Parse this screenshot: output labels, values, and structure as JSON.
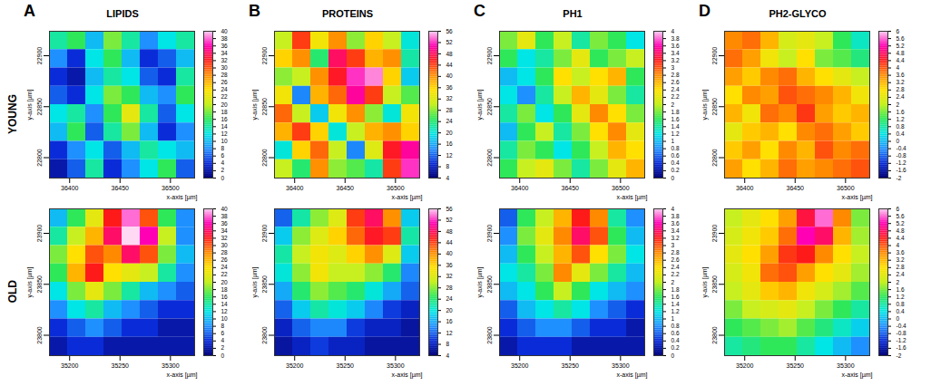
{
  "columns": [
    {
      "letter": "A",
      "title": "LIPIDS"
    },
    {
      "letter": "B",
      "title": "PROTEINS"
    },
    {
      "letter": "C",
      "title": "PH1"
    },
    {
      "letter": "D",
      "title": "PH2-GLYCO"
    }
  ],
  "rows": [
    "YOUNG",
    "OLD"
  ],
  "chart_data": [
    {
      "type": "heatmap",
      "x_label": "x-axis [µm]",
      "y_label": "y-axis [µm]",
      "xlim": [
        36380,
        36524
      ],
      "ylim": [
        22780,
        22924
      ],
      "xticks": [
        36400,
        36450,
        36500
      ],
      "yticks": [
        22800,
        22850,
        22900
      ],
      "x": [
        36389,
        36407,
        36425,
        36443,
        36461,
        36479,
        36497,
        36515
      ],
      "y": [
        22915,
        22897,
        22879,
        22861,
        22843,
        22825,
        22807,
        22789
      ],
      "cells": [
        [
          14,
          16,
          10,
          18,
          14,
          8,
          12,
          14
        ],
        [
          8,
          4,
          12,
          16,
          10,
          4,
          6,
          10
        ],
        [
          4,
          2,
          10,
          14,
          12,
          6,
          4,
          14
        ],
        [
          6,
          4,
          12,
          18,
          16,
          10,
          8,
          16
        ],
        [
          12,
          14,
          8,
          16,
          22,
          14,
          6,
          12
        ],
        [
          10,
          16,
          6,
          14,
          18,
          10,
          4,
          8
        ],
        [
          4,
          8,
          12,
          6,
          10,
          14,
          12,
          10
        ],
        [
          2,
          6,
          14,
          4,
          8,
          12,
          16,
          6
        ]
      ],
      "colorbar_range": [
        0,
        40
      ],
      "colorbar_ticks": [
        0,
        2,
        4,
        6,
        8,
        10,
        12,
        14,
        16,
        18,
        20,
        22,
        24,
        26,
        28,
        30,
        32,
        34,
        36,
        38,
        40
      ]
    },
    {
      "type": "heatmap",
      "x_label": "x-axis [µm]",
      "y_label": "y-axis [µm]",
      "xlim": [
        36380,
        36524
      ],
      "ylim": [
        22780,
        22924
      ],
      "xticks": [
        36400,
        36450,
        36500
      ],
      "yticks": [
        22800,
        22850,
        22900
      ],
      "x": [
        36389,
        36407,
        36425,
        36443,
        36461,
        36479,
        36497,
        36515
      ],
      "y": [
        22915,
        22897,
        22879,
        22861,
        22843,
        22825,
        22807,
        22789
      ],
      "cells": [
        [
          30,
          44,
          34,
          40,
          28,
          36,
          30,
          20
        ],
        [
          36,
          40,
          24,
          48,
          44,
          38,
          40,
          22
        ],
        [
          28,
          30,
          40,
          46,
          52,
          54,
          36,
          18
        ],
        [
          34,
          14,
          38,
          42,
          50,
          44,
          30,
          26
        ],
        [
          42,
          30,
          18,
          34,
          40,
          28,
          20,
          34
        ],
        [
          38,
          44,
          36,
          20,
          30,
          38,
          40,
          36
        ],
        [
          20,
          36,
          42,
          30,
          14,
          32,
          46,
          50
        ],
        [
          30,
          24,
          40,
          28,
          26,
          22,
          44,
          52
        ]
      ],
      "colorbar_range": [
        4,
        56
      ],
      "colorbar_ticks": [
        4,
        8,
        12,
        16,
        20,
        24,
        28,
        32,
        36,
        40,
        44,
        48,
        52,
        56
      ]
    },
    {
      "type": "heatmap",
      "x_label": "x-axis [µm]",
      "y_label": "y-axis [µm]",
      "xlim": [
        36380,
        36524
      ],
      "ylim": [
        22780,
        22924
      ],
      "xticks": [
        36400,
        36450,
        36500
      ],
      "yticks": [
        22800,
        22850,
        22900
      ],
      "x": [
        36389,
        36407,
        36425,
        36443,
        36461,
        36479,
        36497,
        36515
      ],
      "y": [
        22915,
        22897,
        22879,
        22861,
        22843,
        22825,
        22807,
        22789
      ],
      "cells": [
        [
          1.8,
          2.2,
          1.6,
          2.0,
          1.4,
          1.8,
          1.6,
          1.2
        ],
        [
          1.6,
          1.2,
          1.4,
          1.8,
          2.2,
          1.6,
          1.8,
          2.0
        ],
        [
          1.0,
          1.2,
          1.6,
          2.4,
          2.0,
          2.4,
          2.6,
          1.6
        ],
        [
          1.2,
          0.8,
          1.4,
          2.0,
          2.6,
          2.2,
          1.8,
          1.4
        ],
        [
          1.4,
          1.8,
          1.2,
          1.6,
          2.2,
          2.8,
          2.4,
          1.8
        ],
        [
          1.0,
          1.6,
          2.0,
          1.4,
          1.8,
          2.4,
          2.8,
          2.2
        ],
        [
          1.4,
          1.8,
          1.6,
          1.2,
          1.6,
          2.0,
          2.6,
          2.4
        ],
        [
          1.6,
          2.0,
          2.2,
          1.8,
          1.4,
          1.8,
          2.2,
          2.6
        ]
      ],
      "colorbar_range": [
        0,
        4
      ],
      "colorbar_ticks": [
        0,
        0.2,
        0.4,
        0.6,
        0.8,
        1,
        1.2,
        1.4,
        1.6,
        1.8,
        2,
        2.2,
        2.4,
        2.6,
        2.8,
        3,
        3.2,
        3.4,
        3.6,
        3.8,
        4
      ]
    },
    {
      "type": "heatmap",
      "x_label": "x-axis [µm]",
      "y_label": "y-axis [µm]",
      "xlim": [
        36380,
        36524
      ],
      "ylim": [
        22780,
        22924
      ],
      "xticks": [
        36400,
        36450,
        36500
      ],
      "yticks": [
        22800,
        22850,
        22900
      ],
      "x": [
        36389,
        36407,
        36425,
        36443,
        36461,
        36479,
        36497,
        36515
      ],
      "y": [
        22915,
        22897,
        22879,
        22861,
        22843,
        22825,
        22807,
        22789
      ],
      "cells": [
        [
          3.6,
          3.8,
          3.2,
          2.2,
          2.4,
          2.0,
          1.2,
          0.6
        ],
        [
          3.8,
          3.4,
          2.6,
          2.0,
          2.8,
          1.6,
          1.4,
          1.0
        ],
        [
          3.4,
          3.0,
          3.6,
          3.8,
          3.2,
          2.8,
          2.4,
          2.0
        ],
        [
          2.8,
          3.6,
          3.4,
          4.0,
          3.8,
          3.6,
          3.2,
          2.6
        ],
        [
          3.2,
          2.6,
          3.8,
          3.6,
          4.2,
          3.4,
          3.0,
          3.2
        ],
        [
          2.4,
          3.0,
          3.2,
          2.8,
          3.6,
          3.8,
          3.4,
          3.0
        ],
        [
          3.0,
          3.4,
          2.8,
          3.6,
          3.2,
          4.0,
          3.6,
          3.8
        ],
        [
          3.4,
          2.8,
          3.2,
          3.8,
          3.4,
          3.6,
          3.8,
          4.0
        ]
      ],
      "colorbar_range": [
        -2,
        6
      ],
      "colorbar_ticks": [
        -2,
        -1.6,
        -1.2,
        -0.8,
        -0.4,
        0,
        0.4,
        0.8,
        1.2,
        1.6,
        2,
        2.4,
        2.8,
        3.2,
        3.6,
        4,
        4.4,
        4.8,
        5.2,
        5.6,
        6
      ]
    },
    {
      "type": "heatmap",
      "x_label": "x-axis [µm]",
      "y_label": "y-axis [µm]",
      "xlim": [
        35180,
        35324
      ],
      "ylim": [
        23780,
        23924
      ],
      "xticks": [
        35200,
        35250,
        35300
      ],
      "yticks": [
        23800,
        23850,
        23900
      ],
      "x": [
        35189,
        35207,
        35225,
        35243,
        35261,
        35279,
        35297,
        35315
      ],
      "y": [
        23915,
        23897,
        23879,
        23861,
        23843,
        23825,
        23807,
        23789
      ],
      "cells": [
        [
          10,
          16,
          22,
          32,
          38,
          30,
          16,
          8
        ],
        [
          14,
          20,
          26,
          34,
          40,
          36,
          20,
          8
        ],
        [
          18,
          24,
          30,
          28,
          34,
          30,
          18,
          10
        ],
        [
          16,
          26,
          32,
          24,
          22,
          20,
          14,
          8
        ],
        [
          12,
          18,
          22,
          18,
          14,
          10,
          8,
          6
        ],
        [
          8,
          12,
          14,
          10,
          8,
          6,
          4,
          4
        ],
        [
          4,
          6,
          8,
          6,
          4,
          4,
          2,
          2
        ],
        [
          2,
          4,
          4,
          2,
          2,
          2,
          2,
          2
        ]
      ],
      "colorbar_range": [
        0,
        40
      ],
      "colorbar_ticks": [
        0,
        2,
        4,
        6,
        8,
        10,
        12,
        14,
        16,
        18,
        20,
        22,
        24,
        26,
        28,
        30,
        32,
        34,
        36,
        38,
        40
      ]
    },
    {
      "type": "heatmap",
      "x_label": "x-axis [µm]",
      "y_label": "y-axis [µm]",
      "xlim": [
        35180,
        35324
      ],
      "ylim": [
        23780,
        23924
      ],
      "xticks": [
        35200,
        35250,
        35300
      ],
      "yticks": [
        23800,
        23850,
        23900
      ],
      "x": [
        35189,
        35207,
        35225,
        35243,
        35261,
        35279,
        35297,
        35315
      ],
      "y": [
        23915,
        23897,
        23879,
        23861,
        23843,
        23825,
        23807,
        23789
      ],
      "cells": [
        [
          12,
          22,
          28,
          32,
          44,
          48,
          40,
          18
        ],
        [
          18,
          28,
          32,
          36,
          42,
          46,
          44,
          22
        ],
        [
          22,
          30,
          34,
          32,
          36,
          40,
          32,
          18
        ],
        [
          20,
          28,
          34,
          30,
          30,
          28,
          24,
          14
        ],
        [
          16,
          24,
          28,
          26,
          24,
          20,
          16,
          12
        ],
        [
          12,
          18,
          22,
          20,
          18,
          14,
          10,
          8
        ],
        [
          8,
          12,
          14,
          14,
          10,
          8,
          8,
          6
        ],
        [
          6,
          8,
          10,
          8,
          8,
          6,
          6,
          6
        ]
      ],
      "colorbar_range": [
        4,
        56
      ],
      "colorbar_ticks": [
        4,
        8,
        12,
        16,
        20,
        24,
        28,
        32,
        36,
        40,
        44,
        48,
        52,
        56
      ]
    },
    {
      "type": "heatmap",
      "x_label": "x-axis [µm]",
      "y_label": "y-axis [µm]",
      "xlim": [
        35180,
        35324
      ],
      "ylim": [
        23780,
        23924
      ],
      "xticks": [
        35200,
        35250,
        35300
      ],
      "yticks": [
        23800,
        23850,
        23900
      ],
      "x": [
        35189,
        35207,
        35225,
        35243,
        35261,
        35279,
        35297,
        35315
      ],
      "y": [
        23915,
        23897,
        23879,
        23861,
        23843,
        23825,
        23807,
        23789
      ],
      "cells": [
        [
          0.6,
          1.6,
          2.0,
          2.6,
          3.2,
          2.8,
          1.4,
          0.8
        ],
        [
          0.8,
          1.8,
          2.2,
          2.8,
          3.4,
          3.0,
          1.6,
          1.0
        ],
        [
          1.0,
          1.6,
          2.0,
          2.6,
          3.0,
          2.4,
          1.8,
          1.2
        ],
        [
          1.2,
          1.4,
          1.8,
          2.8,
          2.2,
          1.8,
          1.4,
          1.0
        ],
        [
          1.0,
          1.2,
          1.6,
          2.0,
          1.6,
          1.2,
          1.0,
          0.8
        ],
        [
          0.6,
          1.0,
          1.2,
          1.4,
          1.2,
          0.8,
          0.6,
          0.4
        ],
        [
          0.4,
          0.6,
          0.8,
          0.8,
          0.6,
          0.4,
          0.4,
          0.2
        ],
        [
          0.2,
          0.4,
          0.4,
          0.4,
          0.2,
          0.2,
          0.2,
          0.2
        ]
      ],
      "colorbar_range": [
        0,
        4
      ],
      "colorbar_ticks": [
        0,
        0.2,
        0.4,
        0.6,
        0.8,
        1,
        1.2,
        1.4,
        1.6,
        1.8,
        2,
        2.2,
        2.4,
        2.6,
        2.8,
        3,
        3.2,
        3.4,
        3.6,
        3.8,
        4
      ]
    },
    {
      "type": "heatmap",
      "x_label": "x-axis [µm]",
      "y_label": "y-axis [µm]",
      "xlim": [
        35180,
        35324
      ],
      "ylim": [
        23780,
        23924
      ],
      "xticks": [
        35200,
        35250,
        35300
      ],
      "yticks": [
        23800,
        23850,
        23900
      ],
      "x": [
        35189,
        35207,
        35225,
        35243,
        35261,
        35279,
        35297,
        35315
      ],
      "y": [
        23915,
        23897,
        23879,
        23861,
        23843,
        23825,
        23807,
        23789
      ],
      "cells": [
        [
          2.0,
          2.4,
          2.8,
          3.4,
          4.6,
          5.6,
          3.6,
          1.6
        ],
        [
          2.2,
          2.6,
          3.0,
          3.8,
          5.2,
          4.8,
          3.2,
          1.8
        ],
        [
          2.4,
          2.8,
          3.4,
          4.2,
          4.4,
          3.6,
          2.8,
          2.0
        ],
        [
          2.2,
          2.6,
          3.8,
          4.0,
          3.4,
          2.8,
          2.4,
          1.8
        ],
        [
          2.0,
          2.4,
          3.0,
          3.2,
          2.6,
          2.2,
          1.8,
          1.4
        ],
        [
          1.6,
          2.0,
          2.2,
          2.4,
          2.0,
          1.6,
          1.2,
          0.8
        ],
        [
          1.2,
          1.4,
          1.6,
          1.8,
          1.4,
          1.0,
          0.6,
          0.2
        ],
        [
          0.8,
          1.0,
          1.2,
          1.2,
          0.8,
          0.4,
          0.0,
          -0.4
        ]
      ],
      "colorbar_range": [
        -2,
        6
      ],
      "colorbar_ticks": [
        -2,
        -1.6,
        -1.2,
        -0.8,
        -0.4,
        0,
        0.4,
        0.8,
        1.2,
        1.6,
        2,
        2.4,
        2.8,
        3.2,
        3.6,
        4,
        4.4,
        4.8,
        5.2,
        5.6,
        6
      ]
    }
  ]
}
